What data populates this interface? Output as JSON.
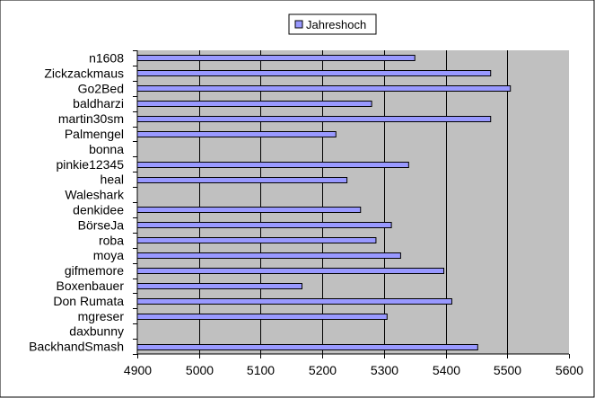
{
  "colors": {
    "chart_background": "#ffffff",
    "plot_background": "#c0c0c0",
    "bar_fill": "#9999ff",
    "bar_stroke": "#000000",
    "gridline": "#000000",
    "text": "#000000"
  },
  "chart_data": {
    "type": "bar",
    "orientation": "horizontal",
    "title": "",
    "xlabel": "",
    "ylabel": "",
    "categories": [
      "n1608",
      "Zickzackmaus",
      "Go2Bed",
      "baldharzi",
      "martin30sm",
      "Palmengel",
      "bonna",
      "pinkie12345",
      "heal",
      "Waleshark",
      "denkidee",
      "BörseJa",
      "roba",
      "moya",
      "gifmemore",
      "Boxenbauer",
      "Don Rumata",
      "mgreser",
      "daxbunny",
      "BackhandSmash"
    ],
    "series": [
      {
        "name": "Jahreshoch",
        "values": [
          5350,
          5473,
          5505,
          5280,
          5473,
          5222,
          null,
          5340,
          5240,
          null,
          5262,
          5312,
          5287,
          5327,
          5397,
          5167,
          5410,
          5305,
          null,
          5452
        ]
      }
    ],
    "xlim": [
      4900,
      5600
    ],
    "xticks": [
      "4900",
      "5000",
      "5100",
      "5200",
      "5300",
      "5400",
      "5500",
      "5600"
    ],
    "gridlines": true,
    "legend_position": "top"
  }
}
